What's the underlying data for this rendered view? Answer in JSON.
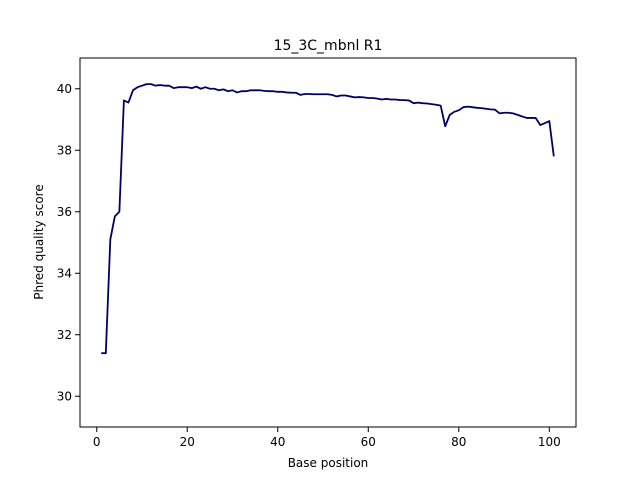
{
  "chart_data": {
    "type": "line",
    "title": "15_3C_mbnl R1",
    "xlabel": "Base position",
    "ylabel": "Phred quality score",
    "xlim": [
      -3.7,
      105.9
    ],
    "ylim": [
      29,
      41
    ],
    "xticks": [
      0,
      20,
      40,
      60,
      80,
      100
    ],
    "yticks": [
      30,
      32,
      34,
      36,
      38,
      40
    ],
    "grid": false,
    "legend": "none",
    "line_color": "#000066",
    "series": [
      {
        "x": [
          1,
          2,
          3,
          4,
          5,
          6,
          7,
          8,
          9,
          10,
          11,
          12,
          13,
          14,
          15,
          16,
          17,
          18,
          19,
          20,
          21,
          22,
          23,
          24,
          25,
          26,
          27,
          28,
          29,
          30,
          31,
          32,
          33,
          34,
          35,
          36,
          37,
          38,
          39,
          40,
          41,
          42,
          43,
          44,
          45,
          46,
          47,
          48,
          49,
          50,
          51,
          52,
          53,
          54,
          55,
          56,
          57,
          58,
          59,
          60,
          61,
          62,
          63,
          64,
          65,
          66,
          67,
          68,
          69,
          70,
          71,
          72,
          73,
          74,
          75,
          76,
          77,
          78,
          79,
          80,
          81,
          82,
          83,
          84,
          85,
          86,
          87,
          88,
          89,
          90,
          91,
          92,
          93,
          94,
          95,
          96,
          97,
          98,
          99,
          100,
          101
        ],
        "values": [
          31.4,
          31.4,
          35.1,
          35.85,
          36.0,
          39.62,
          39.55,
          39.95,
          40.05,
          40.1,
          40.15,
          40.15,
          40.1,
          40.12,
          40.1,
          40.1,
          40.02,
          40.05,
          40.05,
          40.05,
          40.02,
          40.07,
          40.0,
          40.05,
          40.0,
          40.0,
          39.95,
          39.98,
          39.92,
          39.95,
          39.88,
          39.92,
          39.92,
          39.95,
          39.95,
          39.95,
          39.93,
          39.92,
          39.92,
          39.9,
          39.9,
          39.88,
          39.87,
          39.87,
          39.8,
          39.83,
          39.83,
          39.82,
          39.82,
          39.82,
          39.82,
          39.8,
          39.75,
          39.78,
          39.78,
          39.75,
          39.72,
          39.73,
          39.72,
          39.7,
          39.7,
          39.68,
          39.65,
          39.67,
          39.65,
          39.65,
          39.63,
          39.63,
          39.62,
          39.53,
          39.55,
          39.53,
          39.52,
          39.5,
          39.48,
          39.45,
          38.78,
          39.15,
          39.25,
          39.3,
          39.4,
          39.42,
          39.4,
          39.38,
          39.37,
          39.35,
          39.33,
          39.32,
          39.2,
          39.22,
          39.22,
          39.2,
          39.15,
          39.1,
          39.05,
          39.05,
          39.05,
          38.82,
          38.88,
          38.95,
          37.8
        ]
      }
    ]
  }
}
